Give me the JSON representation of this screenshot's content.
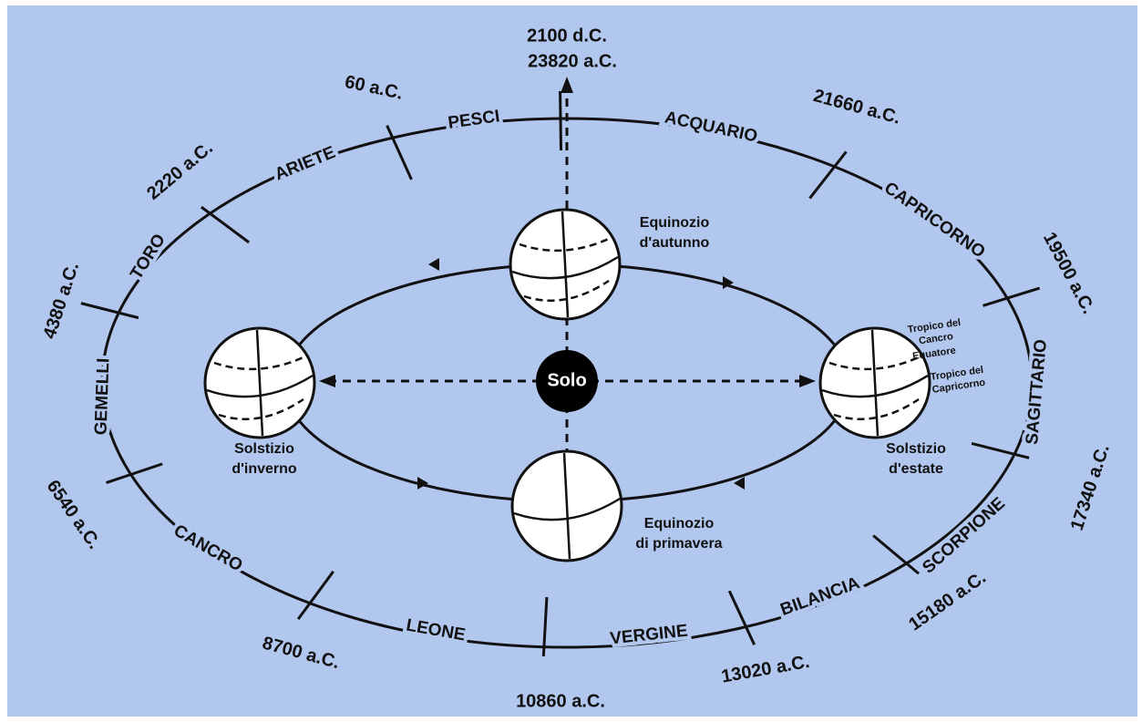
{
  "diagram": {
    "center": "Solo",
    "top_dates": [
      "2100 d.C.",
      "23820 a.C."
    ],
    "signs": [
      "PESCI",
      "ACQUARIO",
      "CAPRICORNO",
      "SAGITTARIO",
      "SCORPIONE",
      "BILANCIA",
      "VERGINE",
      "LEONE",
      "CANCRO",
      "GEMELLI",
      "TORO",
      "ARIETE"
    ],
    "dates": [
      "21660 a.C.",
      "19500 a.C.",
      "17340 a.C.",
      "15180 a.C.",
      "13020 a.C.",
      "10860 a.C.",
      "8700 a.C.",
      "6540 a.C.",
      "4380 a.C.",
      "2220 a.C.",
      "60 a.C."
    ],
    "seasons": [
      [
        "Equinozio",
        "d'autunno"
      ],
      [
        "Solstizio",
        "d'inverno"
      ],
      [
        "Solstizio",
        "d'estate"
      ],
      [
        "Equinozio",
        "di primavera"
      ]
    ],
    "earth_lines": [
      [
        "Tropico del",
        "Cancro"
      ],
      [
        "Equatore"
      ],
      [
        "Tropico del",
        "Capricorno"
      ]
    ]
  }
}
